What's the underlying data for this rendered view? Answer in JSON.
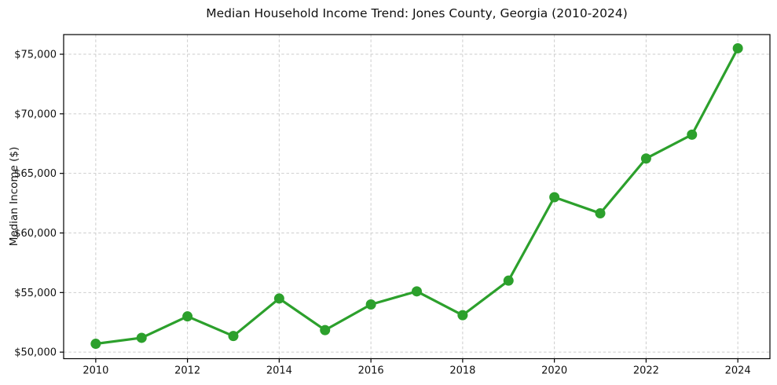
{
  "chart_data": {
    "type": "line",
    "title": "Median Household Income Trend: Jones County, Georgia (2010-2024)",
    "xlabel": "",
    "ylabel": "Median Income ($)",
    "series": [
      {
        "name": "Median household income",
        "x": [
          2010,
          2011,
          2012,
          2013,
          2014,
          2015,
          2016,
          2017,
          2018,
          2019,
          2020,
          2021,
          2022,
          2023,
          2024
        ],
        "values": [
          50700,
          51200,
          53000,
          51350,
          54500,
          51850,
          54000,
          55100,
          53100,
          56000,
          63000,
          61650,
          66250,
          68250,
          75500
        ]
      }
    ],
    "xticks": [
      2010,
      2012,
      2014,
      2016,
      2018,
      2020,
      2022,
      2024
    ],
    "xtick_labels": [
      "2010",
      "2012",
      "2014",
      "2016",
      "2018",
      "2020",
      "2022",
      "2024"
    ],
    "yticks": [
      50000,
      55000,
      60000,
      65000,
      70000,
      75000
    ],
    "ytick_labels": [
      "$50,000",
      "$55,000",
      "$60,000",
      "$65,000",
      "$70,000",
      "$75,000"
    ],
    "xlim": [
      2009.3,
      2024.7
    ],
    "ylim": [
      49450,
      76650
    ],
    "grid": "dashed-both-axes",
    "legend": "none",
    "line_color": "#2ca02c",
    "marker": "circle",
    "grid_color": "#cdcdcd",
    "spine_color": "#000000"
  }
}
